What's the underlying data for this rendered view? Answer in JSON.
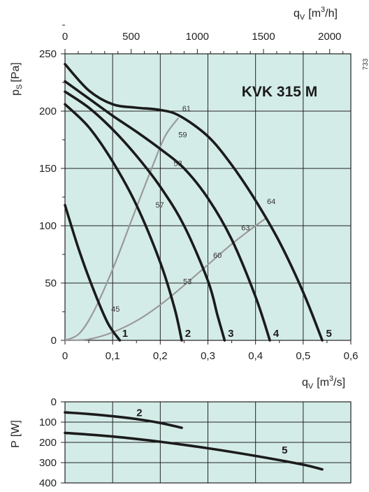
{
  "chart_data": [
    {
      "type": "line",
      "title": "KVK 315 M",
      "code": "733",
      "xlabel": "q",
      "xlabel_sub": "V",
      "xlabel_unit_pre": "[m",
      "xlabel_unit_sup": "3",
      "xlabel_unit_post": "/s]",
      "xlim": [
        0,
        0.6
      ],
      "xticks": [
        "0",
        "0,1",
        "0,2",
        "0,3",
        "0,4",
        "0,5",
        "0,6"
      ],
      "x2label": "q",
      "x2label_sub": "V",
      "x2label_unit_pre": "[m",
      "x2label_unit_sup": "3",
      "x2label_unit_post": "/h]",
      "x2lim": [
        0,
        2160
      ],
      "x2ticks": [
        "0",
        "500",
        "1000",
        "1500",
        "2000"
      ],
      "x2tick_values": [
        0,
        500,
        1000,
        1500,
        2000
      ],
      "ylabel": "p",
      "ylabel_sub": "S",
      "ylabel_unit": "[Pa]",
      "ylim": [
        0,
        250
      ],
      "yticks": [
        "0",
        "50",
        "100",
        "150",
        "200",
        "250"
      ],
      "grid": true,
      "series": [
        {
          "name": "1",
          "x": [
            0,
            0.03,
            0.06,
            0.09,
            0.115
          ],
          "y": [
            118,
            78,
            44,
            15,
            0
          ]
        },
        {
          "name": "2",
          "x": [
            0,
            0.05,
            0.1,
            0.15,
            0.2,
            0.23,
            0.245
          ],
          "y": [
            206,
            186,
            156,
            118,
            68,
            28,
            0
          ]
        },
        {
          "name": "3",
          "x": [
            0,
            0.05,
            0.1,
            0.15,
            0.2,
            0.25,
            0.3,
            0.32,
            0.335
          ],
          "y": [
            217,
            203,
            184,
            161,
            134,
            100,
            52,
            22,
            0
          ]
        },
        {
          "name": "4",
          "x": [
            0,
            0.05,
            0.1,
            0.15,
            0.2,
            0.25,
            0.3,
            0.35,
            0.4,
            0.43
          ],
          "y": [
            226,
            211,
            196,
            182,
            167,
            150,
            124,
            88,
            38,
            0
          ]
        },
        {
          "name": "5",
          "x": [
            0,
            0.05,
            0.1,
            0.15,
            0.2,
            0.24,
            0.3,
            0.35,
            0.4,
            0.45,
            0.5,
            0.54
          ],
          "y": [
            241,
            218,
            206,
            203,
            201,
            196,
            178,
            153,
            122,
            86,
            42,
            0
          ]
        }
      ],
      "efficiency_lines": [
        {
          "x": [
            0,
            0.03,
            0.06,
            0.1,
            0.14,
            0.18,
            0.21,
            0.238
          ],
          "y": [
            0,
            6,
            25,
            62,
            105,
            148,
            178,
            194
          ]
        },
        {
          "x": [
            0,
            0.05,
            0.1,
            0.15,
            0.2,
            0.25,
            0.3,
            0.35,
            0.4,
            0.42
          ],
          "y": [
            0,
            1,
            7,
            17,
            31,
            48,
            66,
            84,
            100,
            106
          ]
        }
      ],
      "efficiency_labels": [
        {
          "text": "61",
          "x": 0.246,
          "y": 200
        },
        {
          "text": "59",
          "x": 0.238,
          "y": 177
        },
        {
          "text": "58",
          "x": 0.228,
          "y": 152
        },
        {
          "text": "57",
          "x": 0.19,
          "y": 116
        },
        {
          "text": "45",
          "x": 0.097,
          "y": 25
        },
        {
          "text": "64",
          "x": 0.424,
          "y": 119
        },
        {
          "text": "63",
          "x": 0.37,
          "y": 96
        },
        {
          "text": "60",
          "x": 0.311,
          "y": 72
        },
        {
          "text": "53",
          "x": 0.248,
          "y": 49
        }
      ],
      "curve_labels": [
        {
          "text": "1",
          "x": 0.12,
          "y": 3
        },
        {
          "text": "2",
          "x": 0.252,
          "y": 3
        },
        {
          "text": "3",
          "x": 0.342,
          "y": 3
        },
        {
          "text": "4",
          "x": 0.437,
          "y": 3
        },
        {
          "text": "5",
          "x": 0.548,
          "y": 3
        }
      ]
    },
    {
      "type": "line",
      "ylabel": "P",
      "ylabel_unit": "[W]",
      "xlim": [
        0,
        0.6
      ],
      "ylim": [
        0,
        400
      ],
      "yinverted": true,
      "yticks": [
        "0",
        "100",
        "200",
        "300",
        "400"
      ],
      "grid": true,
      "series": [
        {
          "name": "2",
          "x": [
            0,
            0.05,
            0.1,
            0.15,
            0.2,
            0.245
          ],
          "y": [
            52,
            60,
            71,
            85,
            104,
            128
          ]
        },
        {
          "name": "5",
          "x": [
            0,
            0.1,
            0.2,
            0.3,
            0.4,
            0.5,
            0.54
          ],
          "y": [
            153,
            171,
            197,
            229,
            267,
            310,
            333
          ]
        }
      ],
      "curve_labels": [
        {
          "text": "2",
          "x": 0.15,
          "y": 70
        },
        {
          "text": "5",
          "x": 0.455,
          "y": 255
        }
      ]
    }
  ]
}
